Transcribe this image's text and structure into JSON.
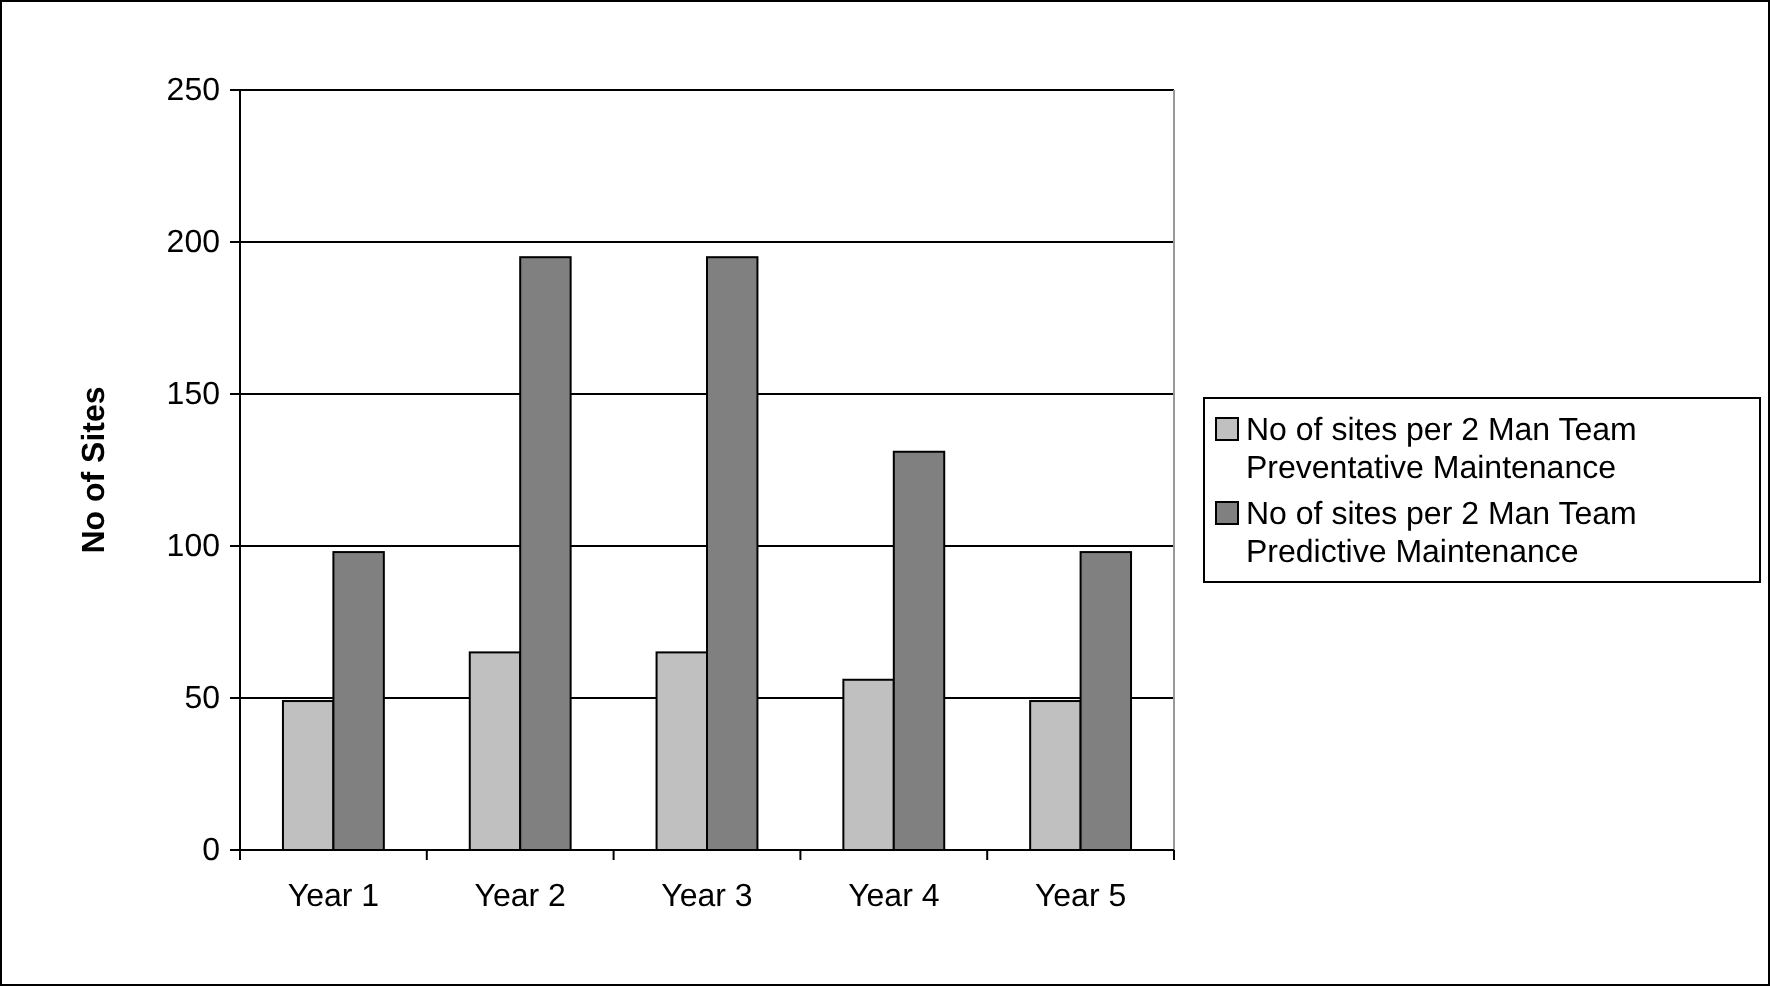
{
  "chart_data": {
    "type": "bar",
    "ylabel": "No of Sites",
    "categories": [
      "Year 1",
      "Year 2",
      "Year 3",
      "Year 4",
      "Year 5"
    ],
    "series": [
      {
        "name": "No of sites per 2 Man Team Preventative Maintenance",
        "color": "#c0c0c0",
        "values": [
          49,
          65,
          65,
          56,
          49
        ]
      },
      {
        "name": "No of sites per 2 Man Team Predictive Maintenance",
        "color": "#808080",
        "values": [
          98,
          195,
          195,
          131,
          98
        ]
      }
    ],
    "ylim": [
      0,
      250
    ],
    "yticks": [
      0,
      50,
      100,
      150,
      200,
      250
    ],
    "grid": "y",
    "legend": "right"
  }
}
